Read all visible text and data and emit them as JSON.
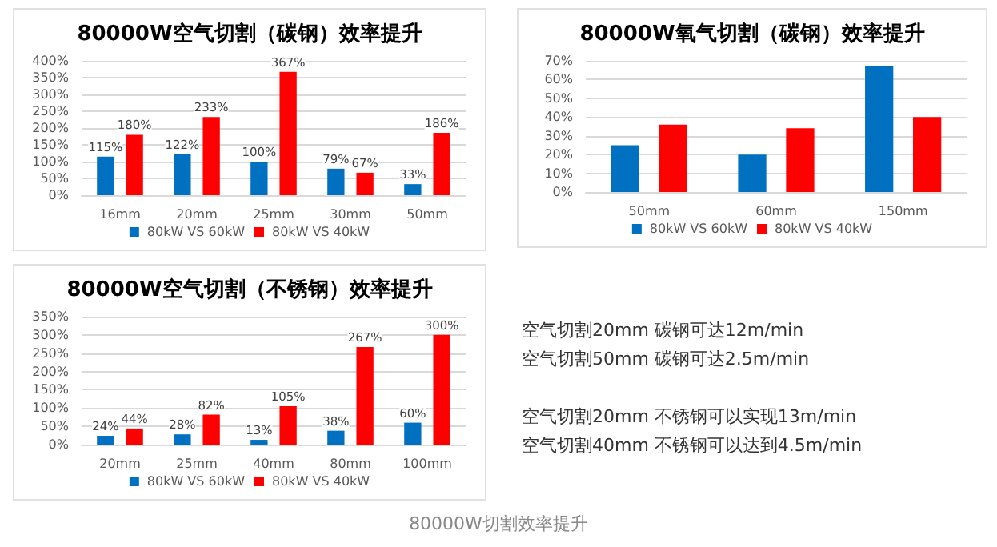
{
  "chart_data": [
    {
      "type": "bar",
      "title": "80000W空气切割（碳钢）效率提升",
      "categories": [
        "16mm",
        "20mm",
        "25mm",
        "30mm",
        "50mm"
      ],
      "series": [
        {
          "name": "80kW VS 60kW",
          "color": "#0070c0",
          "values": [
            115,
            122,
            100,
            79,
            33
          ],
          "value_labels": [
            "115%",
            "122%",
            "100%",
            "79%",
            "33%"
          ]
        },
        {
          "name": "80kW VS 40kW",
          "color": "#ff0000",
          "values": [
            180,
            233,
            367,
            67,
            186
          ],
          "value_labels": [
            "180%",
            "233%",
            "367%",
            "67%",
            "186%"
          ]
        }
      ],
      "ylim": [
        0,
        400
      ],
      "yticks": [
        {
          "value": 0,
          "label": "0%"
        },
        {
          "value": 50,
          "label": "50%"
        },
        {
          "value": 100,
          "label": "100%"
        },
        {
          "value": 150,
          "label": "150%"
        },
        {
          "value": 200,
          "label": "200%"
        },
        {
          "value": 250,
          "label": "250%"
        },
        {
          "value": 300,
          "label": "300%"
        },
        {
          "value": 350,
          "label": "350%"
        },
        {
          "value": 400,
          "label": "400%"
        }
      ],
      "grid": "y",
      "legend": "bottom"
    },
    {
      "type": "bar",
      "title": "80000W氧气切割（碳钢）效率提升",
      "categories": [
        "50mm",
        "60mm",
        "150mm"
      ],
      "series": [
        {
          "name": "80kW VS 60kW",
          "color": "#0070c0",
          "values": [
            25,
            20,
            67
          ]
        },
        {
          "name": "80kW VS 40kW",
          "color": "#ff0000",
          "values": [
            36,
            34,
            40
          ]
        }
      ],
      "ylim": [
        0,
        70
      ],
      "yticks": [
        {
          "value": 0,
          "label": "0%"
        },
        {
          "value": 10,
          "label": "10%"
        },
        {
          "value": 20,
          "label": "20%"
        },
        {
          "value": 30,
          "label": "30%"
        },
        {
          "value": 40,
          "label": "40%"
        },
        {
          "value": 50,
          "label": "50%"
        },
        {
          "value": 60,
          "label": "60%"
        },
        {
          "value": 70,
          "label": "70%"
        }
      ],
      "grid": "y",
      "legend": "bottom"
    },
    {
      "type": "bar",
      "title": "80000W空气切割（不锈钢）效率提升",
      "categories": [
        "20mm",
        "25mm",
        "40mm",
        "80mm",
        "100mm"
      ],
      "series": [
        {
          "name": "80kW VS 60kW",
          "color": "#0070c0",
          "values": [
            24,
            28,
            13,
            38,
            60
          ],
          "value_labels": [
            "24%",
            "28%",
            "13%",
            "38%",
            "60%"
          ]
        },
        {
          "name": "80kW VS 40kW",
          "color": "#ff0000",
          "values": [
            44,
            82,
            105,
            267,
            300
          ],
          "value_labels": [
            "44%",
            "82%",
            "105%",
            "267%",
            "300%"
          ]
        }
      ],
      "ylim": [
        0,
        350
      ],
      "yticks": [
        {
          "value": 0,
          "label": "0%"
        },
        {
          "value": 50,
          "label": "50%"
        },
        {
          "value": 100,
          "label": "100%"
        },
        {
          "value": 150,
          "label": "150%"
        },
        {
          "value": 200,
          "label": "200%"
        },
        {
          "value": 250,
          "label": "250%"
        },
        {
          "value": 300,
          "label": "300%"
        },
        {
          "value": 350,
          "label": "350%"
        }
      ],
      "grid": "y",
      "legend": "bottom"
    },
    {
      "type": "other",
      "annotations": [
        "空气切割20mm  碳钢可达12m/min",
        "空气切割50mm  碳钢可达2.5m/min",
        "空气切割20mm 不锈钢可以实现13m/min",
        "空气切割40mm 不锈钢可以达到4.5m/min",
        "80000W切割效率提升"
      ]
    }
  ]
}
